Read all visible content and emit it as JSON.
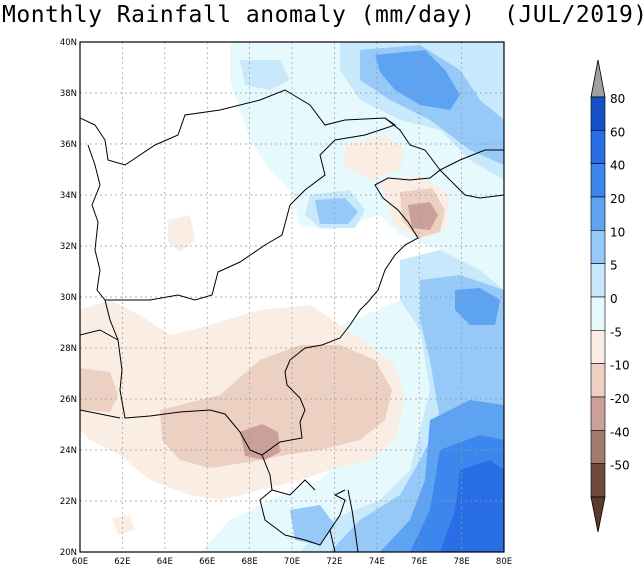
{
  "title": "Monthly Rainfall anomaly (mm/day)",
  "period": "(JUL/2019)",
  "map": {
    "region": "Afghanistan / Pakistan / NW India",
    "lon_range": [
      60,
      80
    ],
    "lat_range": [
      20,
      40
    ],
    "lon_ticks": [
      "60E",
      "62E",
      "64E",
      "66E",
      "68E",
      "70E",
      "72E",
      "74E",
      "76E",
      "78E",
      "80E"
    ],
    "lat_ticks": [
      "20N",
      "22N",
      "24N",
      "26N",
      "28N",
      "30N",
      "32N",
      "34N",
      "36N",
      "38N",
      "40N"
    ]
  },
  "colorbar": {
    "labels": [
      "80",
      "60",
      "40",
      "20",
      "10",
      "5",
      "0",
      "-5",
      "-10",
      "-20",
      "-40",
      "-50"
    ],
    "colors": {
      "b7": "#1650c8",
      "b6": "#2a6ee6",
      "b5": "#3c86ee",
      "b4": "#5ea2f2",
      "b3": "#96c8f8",
      "b2": "#c8e8fc",
      "b1": "#e6fafe",
      "zero": "#ffffff",
      "n1": "#faeee4",
      "n2": "#ecd0c2",
      "n3": "#cca09a",
      "n4": "#a07a6e",
      "n5": "#6e4a3e",
      "over": "#a0a0a0",
      "under": "#5a3a2e"
    }
  },
  "chart_data": {
    "type": "heatmap",
    "title": "Monthly Rainfall anomaly (mm/day) (JUL/2019)",
    "units": "mm/day",
    "xlim": [
      60,
      80
    ],
    "ylim": [
      20,
      40
    ],
    "levels": [
      -50,
      -40,
      -20,
      -10,
      -5,
      0,
      5,
      10,
      20,
      40,
      60,
      80
    ],
    "features": [
      {
        "name": "positive anomaly",
        "lon": [
          77,
          80
        ],
        "lat": [
          20,
          25
        ],
        "level": "10 to 40"
      },
      {
        "name": "positive anomaly",
        "lon": [
          75,
          79
        ],
        "lat": [
          36,
          39
        ],
        "level": "5 to 20"
      },
      {
        "name": "negative anomaly",
        "lon": [
          66,
          74
        ],
        "lat": [
          23,
          28
        ],
        "level": "-10 to -20"
      },
      {
        "name": "negative anomaly",
        "lon": [
          68,
          69
        ],
        "lat": [
          24,
          25
        ],
        "level": "-20 to -40"
      }
    ]
  }
}
